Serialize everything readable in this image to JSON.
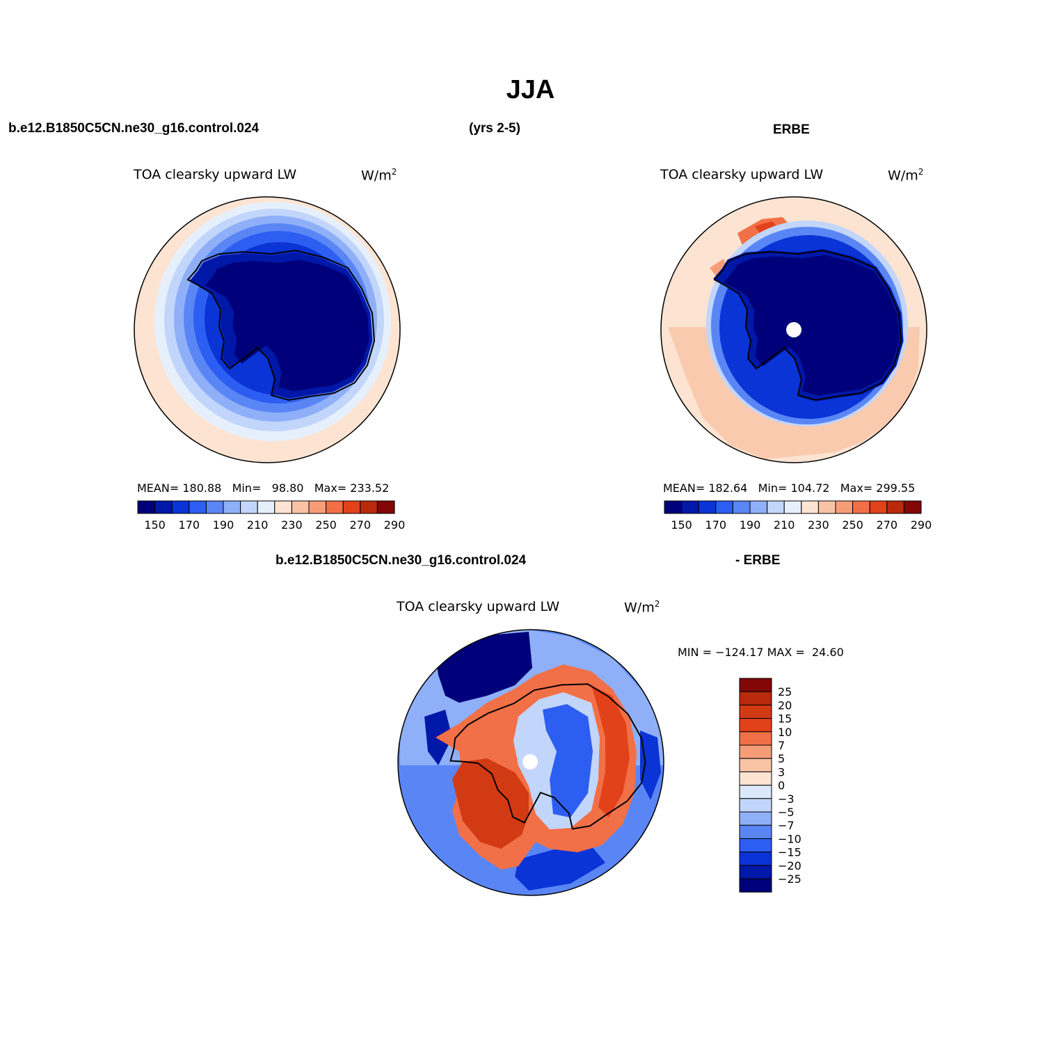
{
  "title": "JJA",
  "case_name": "b.e12.B1850C5CN.ne30_g16.control.024",
  "years": "(yrs 2-5)",
  "obs_name": "ERBE",
  "diff_case_name": "b.e12.B1850C5CN.ne30_g16.control.024",
  "diff_obs_name": "- ERBE",
  "variable": "TOA clearsky upward LW",
  "units": "W/m",
  "units_sup": "2",
  "panels": [
    {
      "stats": {
        "mean_label": "MEAN=",
        "mean": "180.88",
        "min_label": "Min=",
        "min": "98.80",
        "max_label": "Max=",
        "max": "233.52"
      },
      "contour_levels": [
        "150",
        "170",
        "190",
        "210",
        "230",
        "250",
        "270",
        "290"
      ],
      "map_fill": "model"
    },
    {
      "stats": {
        "mean_label": "MEAN=",
        "mean": "182.64",
        "min_label": "Min=",
        "min": "104.72",
        "max_label": "Max=",
        "max": "299.55"
      },
      "contour_levels": [
        "150",
        "170",
        "190",
        "210",
        "230",
        "250",
        "270",
        "290"
      ],
      "map_fill": "obs"
    }
  ],
  "difference": {
    "min_label": "MIN =",
    "min": "−124.17",
    "max_label": "MAX =",
    "max": "24.60",
    "levels": [
      "25",
      "20",
      "15",
      "10",
      "7",
      "5",
      "3",
      "0",
      "−3",
      "−5",
      "−7",
      "−10",
      "−15",
      "−20",
      "−25"
    ]
  },
  "colors": {
    "abs_scale": [
      "#00007a",
      "#0018a8",
      "#0a34d6",
      "#2d5ef2",
      "#5a86f5",
      "#8fb0f8",
      "#c2d6fb",
      "#e6f0fd",
      "#fde4d2",
      "#f9c3a6",
      "#f69d78",
      "#f27047",
      "#e2421a",
      "#b82a0c",
      "#820808"
    ],
    "diff_scale": [
      "#820808",
      "#b82a0c",
      "#d23a14",
      "#e2421a",
      "#f27047",
      "#f69d78",
      "#f9c3a6",
      "#fde4d2",
      "#dbe8fb",
      "#c2d6fb",
      "#8fb0f8",
      "#5a86f5",
      "#2d5ef2",
      "#0a34d6",
      "#0018a8",
      "#00007a"
    ]
  }
}
